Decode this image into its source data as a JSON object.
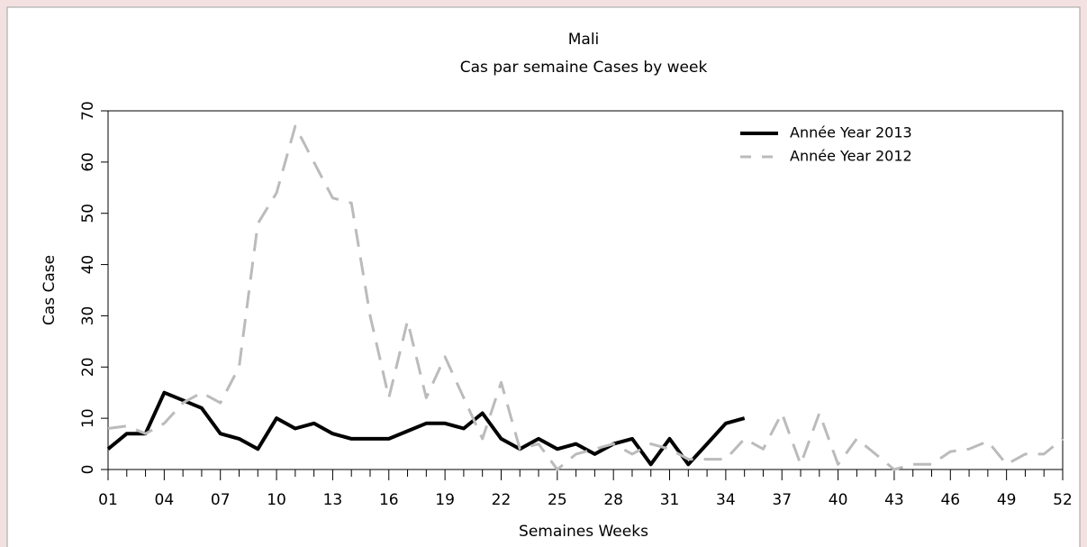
{
  "chart_data": {
    "type": "line",
    "title": "Mali",
    "subtitle": "Cas par semaine Cases by week",
    "x_label": "Semaines Weeks",
    "y_label": "Cas Case",
    "categories": [
      "01",
      null,
      null,
      "04",
      null,
      null,
      "07",
      null,
      null,
      "10",
      null,
      null,
      "13",
      null,
      null,
      "16",
      null,
      null,
      "19",
      null,
      null,
      "22",
      null,
      null,
      "25",
      null,
      null,
      "28",
      null,
      null,
      "31",
      null,
      null,
      "34",
      null,
      null,
      "37",
      null,
      null,
      "40",
      null,
      null,
      "43",
      null,
      null,
      "46",
      null,
      null,
      "49",
      null,
      null,
      "52"
    ],
    "series": [
      {
        "name": "Année Year 2013",
        "color": "#000000",
        "dashed": false,
        "values": [
          4,
          7,
          7,
          15,
          13.5,
          12,
          7,
          6,
          4,
          10,
          8,
          9,
          7,
          6,
          6,
          6,
          7.5,
          9,
          9,
          8,
          11,
          6,
          4,
          6,
          4,
          5,
          3,
          5,
          6,
          1,
          6,
          1,
          5,
          9,
          10,
          null,
          null,
          null,
          null,
          null,
          null,
          null,
          null,
          null,
          null,
          null,
          null,
          null,
          null,
          null,
          null,
          null
        ]
      },
      {
        "name": "Année Year 2012",
        "color": "#bbbbbb",
        "dashed": true,
        "values": [
          8,
          8.5,
          7,
          9,
          13,
          15,
          13,
          20,
          48,
          54,
          67,
          60,
          53,
          52,
          30,
          14,
          29,
          14,
          22,
          14,
          6,
          17,
          4,
          5,
          0,
          3,
          4,
          5,
          3,
          5,
          4,
          2,
          2,
          2,
          6,
          4,
          11,
          1,
          11,
          1,
          6,
          3,
          0,
          1,
          1,
          3.5,
          4,
          5.5,
          1,
          3,
          3,
          6
        ]
      }
    ],
    "ylim": [
      0,
      70
    ],
    "yticks": [
      0,
      10,
      20,
      30,
      40,
      50,
      60,
      70
    ],
    "legend": "upper right"
  }
}
